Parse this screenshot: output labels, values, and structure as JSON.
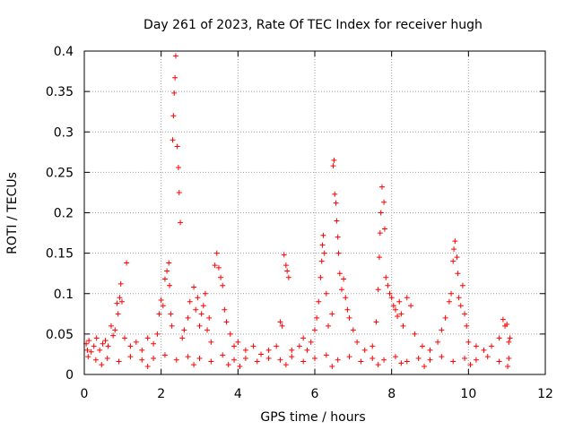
{
  "chart_data": {
    "type": "scatter",
    "title": "Day 261 of 2023, Rate Of TEC Index for receiver hugh",
    "xlabel": "GPS time / hours",
    "ylabel": "ROTI / TECUs",
    "xlim": [
      0,
      12
    ],
    "ylim": [
      0,
      0.4
    ],
    "x_ticks": [
      0,
      2,
      4,
      6,
      8,
      10,
      12
    ],
    "y_ticks": [
      0,
      0.05,
      0.1,
      0.15,
      0.2,
      0.25,
      0.3,
      0.35,
      0.4
    ],
    "x_tick_labels": [
      "0",
      "2",
      "4",
      "6",
      "8",
      "10",
      "12"
    ],
    "y_tick_labels": [
      "0",
      "0.05",
      "0.1",
      "0.15",
      "0.2",
      "0.25",
      "0.3",
      "0.35",
      "0.4"
    ],
    "grid": true,
    "marker": "+",
    "marker_color": "#ff0000",
    "series": [
      {
        "name": "ROTI",
        "points": [
          [
            0.05,
            0.038
          ],
          [
            0.08,
            0.03
          ],
          [
            0.12,
            0.042
          ],
          [
            0.18,
            0.028
          ],
          [
            0.25,
            0.035
          ],
          [
            0.32,
            0.045
          ],
          [
            0.4,
            0.03
          ],
          [
            0.48,
            0.038
          ],
          [
            0.55,
            0.042
          ],
          [
            0.62,
            0.035
          ],
          [
            0.7,
            0.06
          ],
          [
            0.75,
            0.048
          ],
          [
            0.8,
            0.055
          ],
          [
            0.85,
            0.088
          ],
          [
            0.88,
            0.075
          ],
          [
            0.92,
            0.095
          ],
          [
            0.95,
            0.112
          ],
          [
            0.98,
            0.09
          ],
          [
            1.05,
            0.045
          ],
          [
            1.1,
            0.138
          ],
          [
            1.2,
            0.035
          ],
          [
            1.35,
            0.04
          ],
          [
            1.5,
            0.03
          ],
          [
            1.65,
            0.045
          ],
          [
            1.8,
            0.038
          ],
          [
            1.9,
            0.05
          ],
          [
            1.95,
            0.075
          ],
          [
            2.0,
            0.092
          ],
          [
            2.05,
            0.085
          ],
          [
            2.1,
            0.118
          ],
          [
            2.15,
            0.128
          ],
          [
            2.2,
            0.138
          ],
          [
            2.22,
            0.11
          ],
          [
            2.25,
            0.075
          ],
          [
            2.28,
            0.06
          ],
          [
            2.3,
            0.29
          ],
          [
            2.32,
            0.32
          ],
          [
            2.34,
            0.348
          ],
          [
            2.36,
            0.367
          ],
          [
            2.38,
            0.394
          ],
          [
            2.42,
            0.282
          ],
          [
            2.45,
            0.256
          ],
          [
            2.47,
            0.225
          ],
          [
            2.5,
            0.188
          ],
          [
            2.55,
            0.045
          ],
          [
            2.6,
            0.055
          ],
          [
            2.7,
            0.07
          ],
          [
            2.75,
            0.09
          ],
          [
            2.85,
            0.108
          ],
          [
            2.9,
            0.08
          ],
          [
            2.95,
            0.095
          ],
          [
            3.0,
            0.06
          ],
          [
            3.05,
            0.075
          ],
          [
            3.1,
            0.085
          ],
          [
            3.15,
            0.1
          ],
          [
            3.2,
            0.055
          ],
          [
            3.25,
            0.07
          ],
          [
            3.3,
            0.04
          ],
          [
            3.4,
            0.135
          ],
          [
            3.45,
            0.15
          ],
          [
            3.5,
            0.132
          ],
          [
            3.55,
            0.12
          ],
          [
            3.6,
            0.11
          ],
          [
            3.65,
            0.08
          ],
          [
            3.7,
            0.065
          ],
          [
            3.8,
            0.05
          ],
          [
            3.9,
            0.035
          ],
          [
            4.0,
            0.04
          ],
          [
            4.2,
            0.03
          ],
          [
            4.4,
            0.035
          ],
          [
            4.6,
            0.025
          ],
          [
            4.8,
            0.03
          ],
          [
            5.0,
            0.035
          ],
          [
            5.1,
            0.065
          ],
          [
            5.15,
            0.06
          ],
          [
            5.2,
            0.148
          ],
          [
            5.25,
            0.135
          ],
          [
            5.28,
            0.128
          ],
          [
            5.32,
            0.12
          ],
          [
            5.4,
            0.03
          ],
          [
            5.6,
            0.035
          ],
          [
            5.7,
            0.045
          ],
          [
            5.8,
            0.03
          ],
          [
            5.9,
            0.04
          ],
          [
            6.0,
            0.055
          ],
          [
            6.05,
            0.07
          ],
          [
            6.1,
            0.09
          ],
          [
            6.15,
            0.12
          ],
          [
            6.18,
            0.14
          ],
          [
            6.2,
            0.16
          ],
          [
            6.22,
            0.172
          ],
          [
            6.25,
            0.15
          ],
          [
            6.3,
            0.1
          ],
          [
            6.35,
            0.06
          ],
          [
            6.45,
            0.075
          ],
          [
            6.48,
            0.258
          ],
          [
            6.5,
            0.265
          ],
          [
            6.52,
            0.223
          ],
          [
            6.55,
            0.212
          ],
          [
            6.57,
            0.19
          ],
          [
            6.6,
            0.17
          ],
          [
            6.62,
            0.15
          ],
          [
            6.65,
            0.125
          ],
          [
            6.7,
            0.105
          ],
          [
            6.75,
            0.118
          ],
          [
            6.8,
            0.095
          ],
          [
            6.85,
            0.08
          ],
          [
            6.9,
            0.07
          ],
          [
            7.0,
            0.055
          ],
          [
            7.1,
            0.04
          ],
          [
            7.3,
            0.03
          ],
          [
            7.5,
            0.035
          ],
          [
            7.6,
            0.065
          ],
          [
            7.65,
            0.105
          ],
          [
            7.68,
            0.145
          ],
          [
            7.7,
            0.175
          ],
          [
            7.72,
            0.2
          ],
          [
            7.75,
            0.232
          ],
          [
            7.8,
            0.213
          ],
          [
            7.82,
            0.18
          ],
          [
            7.85,
            0.12
          ],
          [
            7.9,
            0.11
          ],
          [
            7.95,
            0.1
          ],
          [
            8.0,
            0.095
          ],
          [
            8.05,
            0.085
          ],
          [
            8.1,
            0.08
          ],
          [
            8.15,
            0.072
          ],
          [
            8.2,
            0.09
          ],
          [
            8.25,
            0.075
          ],
          [
            8.3,
            0.06
          ],
          [
            8.4,
            0.095
          ],
          [
            8.5,
            0.085
          ],
          [
            8.6,
            0.05
          ],
          [
            8.8,
            0.035
          ],
          [
            9.0,
            0.03
          ],
          [
            9.2,
            0.04
          ],
          [
            9.3,
            0.055
          ],
          [
            9.4,
            0.07
          ],
          [
            9.5,
            0.09
          ],
          [
            9.55,
            0.1
          ],
          [
            9.6,
            0.14
          ],
          [
            9.62,
            0.155
          ],
          [
            9.65,
            0.165
          ],
          [
            9.7,
            0.145
          ],
          [
            9.72,
            0.125
          ],
          [
            9.75,
            0.095
          ],
          [
            9.8,
            0.085
          ],
          [
            9.85,
            0.11
          ],
          [
            9.9,
            0.075
          ],
          [
            9.95,
            0.06
          ],
          [
            10.0,
            0.04
          ],
          [
            10.2,
            0.035
          ],
          [
            10.4,
            0.03
          ],
          [
            10.6,
            0.035
          ],
          [
            10.8,
            0.045
          ],
          [
            10.9,
            0.068
          ],
          [
            10.95,
            0.06
          ],
          [
            11.0,
            0.062
          ],
          [
            11.05,
            0.04
          ],
          [
            11.08,
            0.045
          ],
          [
            0.1,
            0.022
          ],
          [
            0.3,
            0.018
          ],
          [
            0.6,
            0.02
          ],
          [
            0.9,
            0.016
          ],
          [
            1.2,
            0.022
          ],
          [
            1.5,
            0.018
          ],
          [
            1.8,
            0.02
          ],
          [
            2.1,
            0.024
          ],
          [
            2.4,
            0.018
          ],
          [
            2.7,
            0.022
          ],
          [
            3.0,
            0.02
          ],
          [
            3.3,
            0.016
          ],
          [
            3.6,
            0.024
          ],
          [
            3.9,
            0.018
          ],
          [
            4.2,
            0.02
          ],
          [
            4.5,
            0.016
          ],
          [
            4.8,
            0.02
          ],
          [
            5.1,
            0.018
          ],
          [
            5.4,
            0.022
          ],
          [
            5.7,
            0.016
          ],
          [
            6.0,
            0.02
          ],
          [
            6.3,
            0.024
          ],
          [
            6.6,
            0.018
          ],
          [
            6.9,
            0.022
          ],
          [
            7.2,
            0.016
          ],
          [
            7.5,
            0.02
          ],
          [
            7.8,
            0.018
          ],
          [
            8.1,
            0.022
          ],
          [
            8.4,
            0.016
          ],
          [
            8.7,
            0.02
          ],
          [
            9.0,
            0.018
          ],
          [
            9.3,
            0.022
          ],
          [
            9.6,
            0.016
          ],
          [
            9.9,
            0.02
          ],
          [
            10.2,
            0.018
          ],
          [
            10.5,
            0.022
          ],
          [
            10.8,
            0.016
          ],
          [
            11.05,
            0.02
          ],
          [
            0.45,
            0.012
          ],
          [
            1.65,
            0.01
          ],
          [
            2.85,
            0.012
          ],
          [
            4.05,
            0.01
          ],
          [
            5.25,
            0.012
          ],
          [
            6.45,
            0.01
          ],
          [
            7.65,
            0.012
          ],
          [
            8.85,
            0.01
          ],
          [
            10.05,
            0.012
          ],
          [
            11.02,
            0.01
          ],
          [
            3.75,
            0.012
          ],
          [
            8.25,
            0.014
          ]
        ]
      }
    ]
  }
}
